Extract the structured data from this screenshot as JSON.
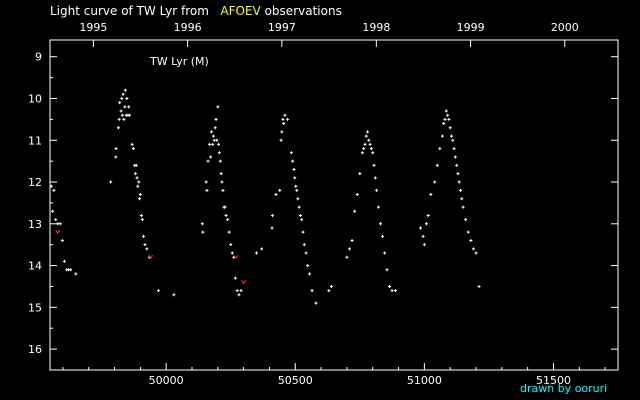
{
  "title": {
    "prefix": "Light curve of TW Lyr from",
    "highlight": "AFOEV",
    "suffix": "observations"
  },
  "credit": "drawn by ooruri",
  "colors": {
    "background": "#000000",
    "axis": "#ffffff",
    "points": "#ffffff",
    "special_points": "#ff2020",
    "highlight": "#ffff00",
    "credit": "#00ffff"
  },
  "chart_data": {
    "type": "scatter",
    "title": "TW Lyr (M)",
    "xlabel": "",
    "ylabel": "",
    "xlim": [
      49550,
      51750
    ],
    "ylim": [
      16.5,
      8.6
    ],
    "y_inverted": true,
    "grid": false,
    "x_ticks": [
      50000,
      50500,
      51000,
      51500
    ],
    "x_tick_labels": [
      "50000",
      "50500",
      "51000",
      "51500"
    ],
    "top_ticks": [
      49718,
      50083,
      50448,
      50814,
      51179,
      51544
    ],
    "top_tick_labels": [
      "1995",
      "1996",
      "1997",
      "1998",
      "1999",
      "2000"
    ],
    "y_ticks": [
      9,
      10,
      11,
      12,
      13,
      14,
      15,
      16
    ],
    "y_tick_labels": [
      "9",
      "10",
      "11",
      "12",
      "13",
      "14",
      "15",
      "16"
    ],
    "series": [
      {
        "points": [
          [
            49555,
            12.1
          ],
          [
            49560,
            12.7
          ],
          [
            49565,
            12.2
          ],
          [
            49572,
            12.9
          ],
          [
            49580,
            13.0
          ],
          [
            49590,
            13.0
          ],
          [
            49598,
            13.4
          ],
          [
            49606,
            13.9
          ],
          [
            49615,
            14.1
          ],
          [
            49622,
            14.1
          ],
          [
            49630,
            14.1
          ],
          [
            49650,
            14.2
          ],
          [
            49785,
            12.0
          ],
          [
            49805,
            11.4
          ],
          [
            49806,
            11.2
          ],
          [
            49815,
            10.7
          ],
          [
            49818,
            10.5
          ],
          [
            49820,
            10.1
          ],
          [
            49825,
            10.3
          ],
          [
            49828,
            10.0
          ],
          [
            49830,
            10.4
          ],
          [
            49833,
            9.9
          ],
          [
            49836,
            10.5
          ],
          [
            49840,
            10.2
          ],
          [
            49842,
            9.8
          ],
          [
            49845,
            10.4
          ],
          [
            49848,
            10.0
          ],
          [
            49852,
            10.4
          ],
          [
            49855,
            10.2
          ],
          [
            49858,
            10.4
          ],
          [
            49868,
            11.1
          ],
          [
            49873,
            11.2
          ],
          [
            49878,
            11.6
          ],
          [
            49881,
            11.8
          ],
          [
            49884,
            11.6
          ],
          [
            49887,
            11.9
          ],
          [
            49890,
            12.1
          ],
          [
            49894,
            12.0
          ],
          [
            49897,
            12.4
          ],
          [
            49900,
            12.3
          ],
          [
            49904,
            12.8
          ],
          [
            49908,
            12.9
          ],
          [
            49912,
            13.3
          ],
          [
            49918,
            13.5
          ],
          [
            49925,
            13.6
          ],
          [
            49935,
            13.8
          ],
          [
            49970,
            14.6
          ],
          [
            50030,
            14.7
          ],
          [
            50140,
            13.0
          ],
          [
            50142,
            13.2
          ],
          [
            50155,
            12.0
          ],
          [
            50158,
            12.2
          ],
          [
            50162,
            11.5
          ],
          [
            50168,
            11.1
          ],
          [
            50172,
            11.4
          ],
          [
            50175,
            10.8
          ],
          [
            50180,
            11.1
          ],
          [
            50183,
            10.9
          ],
          [
            50186,
            11.0
          ],
          [
            50190,
            10.7
          ],
          [
            50193,
            10.5
          ],
          [
            50196,
            11.0
          ],
          [
            50200,
            10.2
          ],
          [
            50203,
            11.1
          ],
          [
            50206,
            11.3
          ],
          [
            50210,
            11.5
          ],
          [
            50213,
            11.8
          ],
          [
            50216,
            12.0
          ],
          [
            50220,
            12.2
          ],
          [
            50224,
            12.6
          ],
          [
            50228,
            12.6
          ],
          [
            50232,
            12.8
          ],
          [
            50238,
            12.9
          ],
          [
            50244,
            13.2
          ],
          [
            50250,
            13.5
          ],
          [
            50256,
            13.7
          ],
          [
            50262,
            13.8
          ],
          [
            50268,
            14.3
          ],
          [
            50275,
            14.6
          ],
          [
            50282,
            14.7
          ],
          [
            50290,
            14.6
          ],
          [
            50350,
            13.7
          ],
          [
            50370,
            13.6
          ],
          [
            50410,
            13.1
          ],
          [
            50412,
            12.8
          ],
          [
            50425,
            12.3
          ],
          [
            50440,
            12.2
          ],
          [
            50445,
            11.0
          ],
          [
            50448,
            10.8
          ],
          [
            50452,
            10.5
          ],
          [
            50455,
            10.6
          ],
          [
            50460,
            10.4
          ],
          [
            50470,
            10.5
          ],
          [
            50485,
            11.3
          ],
          [
            50490,
            11.5
          ],
          [
            50495,
            11.7
          ],
          [
            50498,
            11.9
          ],
          [
            50502,
            12.1
          ],
          [
            50506,
            12.2
          ],
          [
            50510,
            12.4
          ],
          [
            50515,
            12.6
          ],
          [
            50520,
            12.8
          ],
          [
            50525,
            12.9
          ],
          [
            50530,
            13.2
          ],
          [
            50535,
            13.5
          ],
          [
            50542,
            13.7
          ],
          [
            50548,
            14.0
          ],
          [
            50555,
            14.2
          ],
          [
            50565,
            14.6
          ],
          [
            50580,
            14.9
          ],
          [
            50630,
            14.6
          ],
          [
            50640,
            14.5
          ],
          [
            50700,
            13.8
          ],
          [
            50710,
            13.6
          ],
          [
            50720,
            13.4
          ],
          [
            50730,
            12.7
          ],
          [
            50740,
            12.3
          ],
          [
            50750,
            11.8
          ],
          [
            50760,
            11.3
          ],
          [
            50765,
            11.2
          ],
          [
            50770,
            11.1
          ],
          [
            50775,
            10.9
          ],
          [
            50780,
            10.8
          ],
          [
            50785,
            11.0
          ],
          [
            50790,
            11.1
          ],
          [
            50795,
            11.2
          ],
          [
            50800,
            11.3
          ],
          [
            50805,
            11.6
          ],
          [
            50810,
            11.9
          ],
          [
            50815,
            12.2
          ],
          [
            50822,
            12.6
          ],
          [
            50830,
            13.0
          ],
          [
            50838,
            13.3
          ],
          [
            50846,
            13.7
          ],
          [
            50855,
            14.1
          ],
          [
            50865,
            14.5
          ],
          [
            50875,
            14.6
          ],
          [
            50888,
            14.6
          ],
          [
            50985,
            13.1
          ],
          [
            50995,
            13.3
          ],
          [
            51000,
            13.5
          ],
          [
            51008,
            13.0
          ],
          [
            51015,
            12.8
          ],
          [
            51025,
            12.3
          ],
          [
            51040,
            12.0
          ],
          [
            51050,
            11.6
          ],
          [
            51060,
            11.2
          ],
          [
            51070,
            10.9
          ],
          [
            51075,
            10.6
          ],
          [
            51080,
            10.5
          ],
          [
            51085,
            10.3
          ],
          [
            51090,
            10.4
          ],
          [
            51095,
            10.5
          ],
          [
            51100,
            10.7
          ],
          [
            51105,
            10.9
          ],
          [
            51110,
            11.0
          ],
          [
            51115,
            11.2
          ],
          [
            51120,
            11.4
          ],
          [
            51125,
            11.6
          ],
          [
            51130,
            11.8
          ],
          [
            51135,
            12.0
          ],
          [
            51140,
            12.2
          ],
          [
            51145,
            12.4
          ],
          [
            51150,
            12.6
          ],
          [
            51160,
            12.9
          ],
          [
            51170,
            13.2
          ],
          [
            51180,
            13.4
          ],
          [
            51190,
            13.6
          ],
          [
            51200,
            13.7
          ],
          [
            51212,
            14.5
          ]
        ]
      },
      {
        "points": [
          [
            49580,
            13.2
          ],
          [
            49940,
            13.8
          ],
          [
            50270,
            13.8
          ],
          [
            50300,
            14.4
          ]
        ]
      }
    ]
  }
}
